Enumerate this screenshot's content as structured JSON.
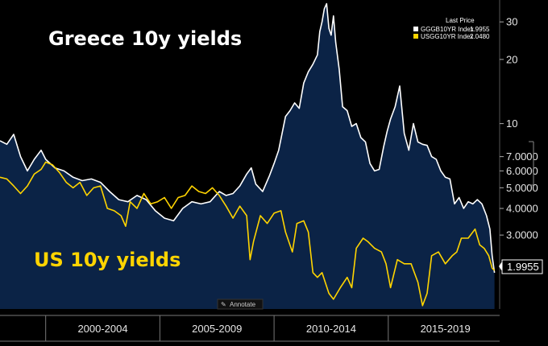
{
  "chart_data": {
    "type": "line",
    "title_greece": "Greece 10y yields",
    "title_us": "US 10y yields",
    "legend_header": "Last Price",
    "y_scale": "log",
    "ylim": [
      1.35,
      38
    ],
    "y_ticks": [
      "30",
      "20",
      "10",
      "7.0000",
      "6.0000",
      "5.0000",
      "4.0000",
      "3.0000"
    ],
    "y_tick_values": [
      30,
      20,
      10,
      7,
      6,
      5,
      4,
      3
    ],
    "x_range": [
      1998.0,
      2019.7
    ],
    "x_period_labels": [
      "2000-2004",
      "2005-2009",
      "2010-2014",
      "2015-2019"
    ],
    "x_period_centers": [
      2002.5,
      2007.5,
      2012.5,
      2017.5
    ],
    "x_period_dividers": [
      2000,
      2005,
      2010,
      2015
    ],
    "annotate_label": "Annotate",
    "series": [
      {
        "name": "GGGB10YR Index",
        "last_price": "1.9955",
        "last_value_label": "1.9955",
        "color": "#ffffff",
        "fill": "#0b2346",
        "points": [
          [
            1998.0,
            8.3
          ],
          [
            1998.3,
            8.0
          ],
          [
            1998.6,
            8.9
          ],
          [
            1998.9,
            7.0
          ],
          [
            1999.2,
            6.0
          ],
          [
            1999.5,
            6.8
          ],
          [
            1999.8,
            7.5
          ],
          [
            2000.0,
            6.8
          ],
          [
            2000.4,
            6.2
          ],
          [
            2000.8,
            6.0
          ],
          [
            2001.2,
            5.6
          ],
          [
            2001.6,
            5.4
          ],
          [
            2002.0,
            5.5
          ],
          [
            2002.4,
            5.3
          ],
          [
            2002.8,
            4.8
          ],
          [
            2003.2,
            4.4
          ],
          [
            2003.6,
            4.3
          ],
          [
            2004.0,
            4.6
          ],
          [
            2004.4,
            4.4
          ],
          [
            2004.8,
            3.9
          ],
          [
            2005.2,
            3.6
          ],
          [
            2005.6,
            3.5
          ],
          [
            2006.0,
            4.0
          ],
          [
            2006.4,
            4.3
          ],
          [
            2006.8,
            4.2
          ],
          [
            2007.2,
            4.3
          ],
          [
            2007.6,
            4.8
          ],
          [
            2007.9,
            4.6
          ],
          [
            2008.2,
            4.7
          ],
          [
            2008.5,
            5.1
          ],
          [
            2008.8,
            5.8
          ],
          [
            2009.0,
            6.2
          ],
          [
            2009.2,
            5.2
          ],
          [
            2009.5,
            4.8
          ],
          [
            2009.8,
            5.7
          ],
          [
            2010.0,
            6.5
          ],
          [
            2010.2,
            7.5
          ],
          [
            2010.5,
            10.8
          ],
          [
            2010.7,
            11.5
          ],
          [
            2010.9,
            12.5
          ],
          [
            2011.1,
            11.8
          ],
          [
            2011.3,
            15.5
          ],
          [
            2011.5,
            17.5
          ],
          [
            2011.7,
            19.0
          ],
          [
            2011.9,
            21.0
          ],
          [
            2012.0,
            27.0
          ],
          [
            2012.1,
            30.0
          ],
          [
            2012.2,
            34.5
          ],
          [
            2012.3,
            36.5
          ],
          [
            2012.4,
            28.0
          ],
          [
            2012.5,
            26.0
          ],
          [
            2012.6,
            32.0
          ],
          [
            2012.7,
            24.0
          ],
          [
            2012.85,
            18.0
          ],
          [
            2013.0,
            12.0
          ],
          [
            2013.2,
            11.5
          ],
          [
            2013.4,
            9.7
          ],
          [
            2013.6,
            10.0
          ],
          [
            2013.8,
            8.6
          ],
          [
            2014.0,
            8.2
          ],
          [
            2014.2,
            6.5
          ],
          [
            2014.4,
            6.0
          ],
          [
            2014.6,
            6.1
          ],
          [
            2014.8,
            7.8
          ],
          [
            2014.95,
            9.2
          ],
          [
            2015.1,
            10.5
          ],
          [
            2015.3,
            12.0
          ],
          [
            2015.5,
            15.0
          ],
          [
            2015.7,
            9.0
          ],
          [
            2015.9,
            7.5
          ],
          [
            2016.1,
            10.0
          ],
          [
            2016.3,
            8.2
          ],
          [
            2016.5,
            8.0
          ],
          [
            2016.7,
            7.9
          ],
          [
            2016.9,
            7.0
          ],
          [
            2017.1,
            6.8
          ],
          [
            2017.3,
            6.0
          ],
          [
            2017.5,
            5.6
          ],
          [
            2017.7,
            5.5
          ],
          [
            2017.9,
            4.2
          ],
          [
            2018.1,
            4.5
          ],
          [
            2018.3,
            4.0
          ],
          [
            2018.5,
            4.3
          ],
          [
            2018.7,
            4.2
          ],
          [
            2018.9,
            4.4
          ],
          [
            2019.1,
            4.2
          ],
          [
            2019.3,
            3.7
          ],
          [
            2019.45,
            3.2
          ],
          [
            2019.55,
            2.4
          ],
          [
            2019.65,
            1.9955
          ]
        ]
      },
      {
        "name": "USGG10YR Index",
        "last_price": "2.0480",
        "color": "#ffd400",
        "points": [
          [
            1998.0,
            5.6
          ],
          [
            1998.3,
            5.5
          ],
          [
            1998.6,
            5.1
          ],
          [
            1998.9,
            4.7
          ],
          [
            1999.2,
            5.1
          ],
          [
            1999.5,
            5.8
          ],
          [
            1999.8,
            6.1
          ],
          [
            2000.0,
            6.6
          ],
          [
            2000.3,
            6.4
          ],
          [
            2000.6,
            5.9
          ],
          [
            2000.9,
            5.3
          ],
          [
            2001.2,
            5.0
          ],
          [
            2001.5,
            5.3
          ],
          [
            2001.8,
            4.6
          ],
          [
            2002.1,
            5.0
          ],
          [
            2002.4,
            5.1
          ],
          [
            2002.7,
            4.0
          ],
          [
            2003.0,
            3.9
          ],
          [
            2003.3,
            3.7
          ],
          [
            2003.5,
            3.3
          ],
          [
            2003.7,
            4.3
          ],
          [
            2004.0,
            4.0
          ],
          [
            2004.3,
            4.7
          ],
          [
            2004.6,
            4.2
          ],
          [
            2004.9,
            4.3
          ],
          [
            2005.2,
            4.5
          ],
          [
            2005.5,
            4.0
          ],
          [
            2005.8,
            4.5
          ],
          [
            2006.1,
            4.6
          ],
          [
            2006.4,
            5.1
          ],
          [
            2006.7,
            4.8
          ],
          [
            2007.0,
            4.7
          ],
          [
            2007.3,
            5.0
          ],
          [
            2007.6,
            4.6
          ],
          [
            2007.9,
            4.1
          ],
          [
            2008.2,
            3.6
          ],
          [
            2008.5,
            4.1
          ],
          [
            2008.8,
            3.7
          ],
          [
            2008.95,
            2.3
          ],
          [
            2009.1,
            2.8
          ],
          [
            2009.4,
            3.7
          ],
          [
            2009.7,
            3.4
          ],
          [
            2010.0,
            3.8
          ],
          [
            2010.3,
            3.9
          ],
          [
            2010.5,
            3.1
          ],
          [
            2010.8,
            2.5
          ],
          [
            2011.0,
            3.4
          ],
          [
            2011.3,
            3.5
          ],
          [
            2011.5,
            3.1
          ],
          [
            2011.7,
            2.0
          ],
          [
            2011.9,
            1.9
          ],
          [
            2012.1,
            2.0
          ],
          [
            2012.4,
            1.6
          ],
          [
            2012.6,
            1.5
          ],
          [
            2012.9,
            1.7
          ],
          [
            2013.2,
            1.9
          ],
          [
            2013.4,
            1.7
          ],
          [
            2013.6,
            2.6
          ],
          [
            2013.9,
            2.9
          ],
          [
            2014.1,
            2.8
          ],
          [
            2014.4,
            2.6
          ],
          [
            2014.7,
            2.5
          ],
          [
            2014.9,
            2.2
          ],
          [
            2015.1,
            1.7
          ],
          [
            2015.4,
            2.3
          ],
          [
            2015.7,
            2.2
          ],
          [
            2016.0,
            2.2
          ],
          [
            2016.3,
            1.8
          ],
          [
            2016.5,
            1.4
          ],
          [
            2016.7,
            1.6
          ],
          [
            2016.9,
            2.4
          ],
          [
            2017.2,
            2.5
          ],
          [
            2017.5,
            2.2
          ],
          [
            2017.8,
            2.4
          ],
          [
            2018.0,
            2.5
          ],
          [
            2018.2,
            2.9
          ],
          [
            2018.5,
            2.9
          ],
          [
            2018.8,
            3.2
          ],
          [
            2019.0,
            2.7
          ],
          [
            2019.2,
            2.6
          ],
          [
            2019.4,
            2.4
          ],
          [
            2019.55,
            2.1
          ],
          [
            2019.65,
            2.048
          ]
        ]
      }
    ]
  }
}
